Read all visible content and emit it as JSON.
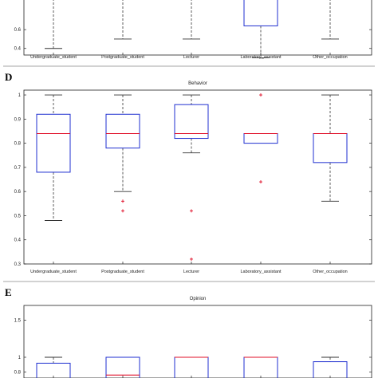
{
  "chart_data": [
    {
      "panel_label": "",
      "type": "box",
      "title": "",
      "ylim": [
        0.33,
        1.0
      ],
      "yticks": [
        0.4,
        0.6
      ],
      "ytick_labels": [
        "0.4",
        "0.6"
      ],
      "categories": [
        "Undergraduate_student",
        "Postgraduate_student",
        "Lecturer",
        "Laboratory_assistant",
        "Other_occupation"
      ],
      "boxes": [
        {
          "whisker_low": 0.4,
          "q1": null,
          "median": null,
          "q3": null,
          "whisker_high": null,
          "outliers": []
        },
        {
          "whisker_low": 0.5,
          "q1": null,
          "median": null,
          "q3": null,
          "whisker_high": null,
          "outliers": []
        },
        {
          "whisker_low": 0.5,
          "q1": null,
          "median": null,
          "q3": null,
          "whisker_high": null,
          "outliers": []
        },
        {
          "whisker_low": 0.3,
          "q1": 0.64,
          "median": null,
          "q3": null,
          "whisker_high": null,
          "outliers": []
        },
        {
          "whisker_low": 0.5,
          "q1": null,
          "median": null,
          "q3": null,
          "whisker_high": null,
          "outliers": []
        }
      ]
    },
    {
      "panel_label": "D",
      "type": "box",
      "title": "Behavior",
      "ylim": [
        0.3,
        1.02
      ],
      "yticks": [
        0.3,
        0.4,
        0.5,
        0.6,
        0.7,
        0.8,
        0.9,
        1.0
      ],
      "ytick_labels": [
        "0.3",
        "0.4",
        "0.5",
        "0.6",
        "0.7",
        "0.8",
        "0.9",
        "1"
      ],
      "categories": [
        "Undergraduate_student",
        "Postgraduate_student",
        "Lecturer",
        "Laboratory_assistant",
        "Other_occupation"
      ],
      "boxes": [
        {
          "whisker_low": 0.48,
          "q1": 0.68,
          "median": 0.84,
          "q3": 0.92,
          "whisker_high": 1.0,
          "outliers": []
        },
        {
          "whisker_low": 0.6,
          "q1": 0.78,
          "median": 0.84,
          "q3": 0.92,
          "whisker_high": 1.0,
          "outliers": [
            0.56,
            0.52
          ]
        },
        {
          "whisker_low": 0.76,
          "q1": 0.82,
          "median": 0.84,
          "q3": 0.96,
          "whisker_high": 1.0,
          "outliers": [
            0.52,
            0.32
          ]
        },
        {
          "whisker_low": null,
          "q1": 0.8,
          "median": 0.84,
          "q3": 0.84,
          "whisker_high": null,
          "outliers": [
            1.0,
            0.64
          ]
        },
        {
          "whisker_low": 0.56,
          "q1": 0.72,
          "median": 0.84,
          "q3": 0.84,
          "whisker_high": 1.0,
          "outliers": []
        }
      ]
    },
    {
      "panel_label": "E",
      "type": "box",
      "title": "Opinion",
      "ylim": [
        0.72,
        1.7
      ],
      "yticks": [
        0.8,
        1.0,
        1.5
      ],
      "ytick_labels": [
        "0.8",
        "1",
        "1.5"
      ],
      "categories": [],
      "boxes": [
        {
          "whisker_low": null,
          "q1": null,
          "median": null,
          "q3": 0.92,
          "whisker_high": 1.0,
          "outliers": []
        },
        {
          "whisker_low": null,
          "q1": null,
          "median": 0.76,
          "q3": 1.0,
          "whisker_high": null,
          "outliers": []
        },
        {
          "whisker_low": null,
          "q1": null,
          "median": 1.0,
          "q3": 1.0,
          "whisker_high": null,
          "outliers": []
        },
        {
          "whisker_low": null,
          "q1": null,
          "median": 1.0,
          "q3": 1.0,
          "whisker_high": null,
          "outliers": []
        },
        {
          "whisker_low": null,
          "q1": null,
          "median": null,
          "q3": 0.94,
          "whisker_high": 1.0,
          "outliers": []
        }
      ]
    }
  ],
  "colors": {
    "box": "#1f2fd0",
    "median": "#e0102a",
    "outlier": "#e0102a",
    "whisker": "#333333",
    "axis": "#222222"
  }
}
